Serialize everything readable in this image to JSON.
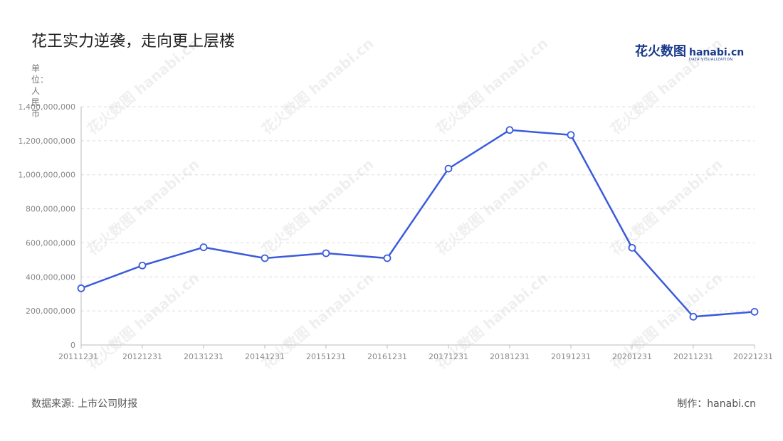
{
  "title": "花王实力逆袭，走向更上层楼",
  "logo": {
    "cn": "花火数图",
    "en": "hanabi.cn",
    "sub": "DATA VISUALIZATION"
  },
  "unit_label": "单位：人民币",
  "source": "数据来源: 上市公司财报",
  "credit": "制作：hanabi.cn",
  "watermark_text": "花火数图 hanabi.cn",
  "colors": {
    "line": "#3b5bdb",
    "grid": "#dddddd",
    "axis": "#bbbbbb"
  },
  "chart_data": {
    "type": "line",
    "title": "花王实力逆袭，走向更上层楼",
    "xlabel": "",
    "ylabel": "单位：人民币",
    "ylim": [
      0,
      1400000000
    ],
    "yticks": [
      "0",
      "200,000,000",
      "400,000,000",
      "600,000,000",
      "800,000,000",
      "1,000,000,000",
      "1,200,000,000",
      "1,400,000,000"
    ],
    "ytick_values": [
      0,
      200000000,
      400000000,
      600000000,
      800000000,
      1000000000,
      1200000000,
      1400000000
    ],
    "categories": [
      "20111231",
      "20121231",
      "20131231",
      "20141231",
      "20151231",
      "20161231",
      "20171231",
      "20181231",
      "20191231",
      "20201231",
      "20211231",
      "20221231"
    ],
    "values": [
      333000000,
      467000000,
      574000000,
      510000000,
      539000000,
      510000000,
      1036000000,
      1263000000,
      1234000000,
      571000000,
      166000000,
      195000000
    ],
    "grid": true,
    "legend": "none"
  }
}
